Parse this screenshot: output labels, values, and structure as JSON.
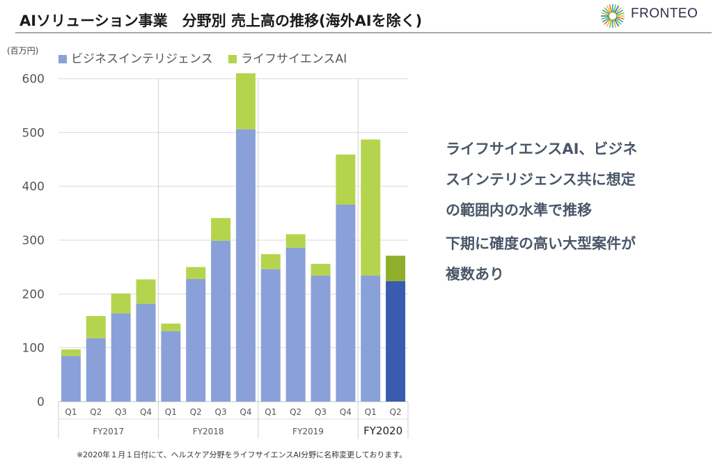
{
  "header": {
    "title": "AIソリューション事業　分野別 売上高の推移(海外AIを除く)",
    "logo_text": "FRONTEO"
  },
  "chart_data": {
    "type": "bar",
    "stacked": true,
    "unit_label": "(百万円)",
    "ylim": [
      0,
      600
    ],
    "yticks": [
      0,
      100,
      200,
      300,
      400,
      500,
      600
    ],
    "grid": true,
    "legend_position": "top",
    "categories": [
      "Q1",
      "Q2",
      "Q3",
      "Q4",
      "Q1",
      "Q2",
      "Q3",
      "Q4",
      "Q1",
      "Q2",
      "Q3",
      "Q4",
      "Q1",
      "Q2"
    ],
    "groups": [
      {
        "label": "FY2017",
        "count": 4
      },
      {
        "label": "FY2018",
        "count": 4
      },
      {
        "label": "FY2019",
        "count": 4
      },
      {
        "label": "FY2020",
        "count": 2
      }
    ],
    "series": [
      {
        "name": "ビジネスインテリジェンス",
        "color": "#8aa0d8",
        "values": [
          85,
          118,
          164,
          182,
          131,
          228,
          299,
          506,
          246,
          286,
          234,
          366,
          234,
          224
        ]
      },
      {
        "name": "ライフサイエンスAI",
        "color": "#b5d44d",
        "values": [
          12,
          41,
          37,
          45,
          14,
          22,
          42,
          104,
          28,
          25,
          22,
          93,
          253,
          47
        ]
      }
    ],
    "highlight_last": {
      "series_colors": [
        "#3a5bb0",
        "#8fae2a"
      ]
    }
  },
  "right_panel": {
    "line1": "ライフサイエンスAI、ビジネ",
    "line2": "スインテリジェンス共に想定",
    "line3": "の範囲内の水準で推移",
    "line4": "下期に確度の高い大型案件が",
    "line5": "複数あり"
  },
  "footnote": "※2020年１月１日付にて、ヘルスケア分野をライフサイエンスAI分野に名称変更しております。"
}
